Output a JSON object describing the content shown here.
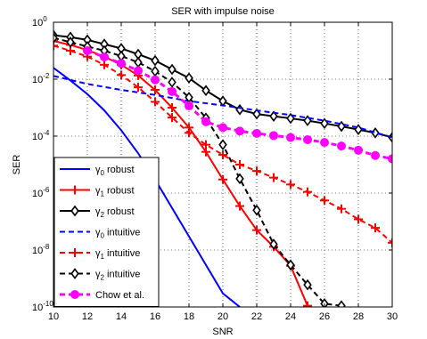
{
  "chart_data": {
    "type": "line",
    "title": "SER with impulse noise",
    "xlabel": "SNR",
    "ylabel": "SER",
    "xlim": [
      10,
      30
    ],
    "ylim": [
      1e-10,
      1
    ],
    "yscale": "log",
    "grid": true,
    "x_ticks": [
      "10",
      "12",
      "14",
      "16",
      "18",
      "20",
      "22",
      "24",
      "26",
      "28",
      "30"
    ],
    "y_ticks": [
      {
        "base": "10",
        "exp": "0",
        "value": 1
      },
      {
        "base": "10",
        "exp": "-2",
        "value": 0.01
      },
      {
        "base": "10",
        "exp": "-4",
        "value": 0.0001
      },
      {
        "base": "10",
        "exp": "-6",
        "value": 1e-06
      },
      {
        "base": "10",
        "exp": "-8",
        "value": 1e-08
      },
      {
        "base": "10",
        "exp": "-10",
        "value": 1e-10
      }
    ],
    "legend_position": "bottom-left",
    "series": [
      {
        "name": "γ0 robust",
        "sym": "γ",
        "sub": "0",
        "suffix": " robust",
        "color": "#0000ff",
        "dash": "solid",
        "marker": "none",
        "x": [
          10,
          11,
          12,
          13,
          14,
          15,
          16,
          17,
          18,
          19,
          20,
          21
        ],
        "y": [
          0.025,
          0.009,
          0.003,
          0.0008,
          0.00016,
          2.5e-05,
          3e-06,
          3e-07,
          3e-08,
          3e-09,
          3e-10,
          1e-10
        ]
      },
      {
        "name": "γ1 robust",
        "sym": "γ",
        "sub": "1",
        "suffix": " robust",
        "color": "#ff0000",
        "dash": "solid",
        "marker": "plus",
        "x": [
          10,
          11,
          12,
          13,
          14,
          15,
          16,
          17,
          18,
          19,
          20,
          21,
          22,
          23,
          24,
          25
        ],
        "y": [
          0.22,
          0.16,
          0.105,
          0.062,
          0.032,
          0.0135,
          0.0042,
          0.001,
          0.0002,
          2.8e-05,
          3e-06,
          3.5e-07,
          5e-08,
          1.3e-08,
          2.8e-09,
          1.1e-10
        ]
      },
      {
        "name": "γ2 robust",
        "sym": "γ",
        "sub": "2",
        "suffix": " robust",
        "color": "#000000",
        "dash": "solid",
        "marker": "diamond",
        "x": [
          10,
          11,
          12,
          13,
          14,
          15,
          16,
          17,
          18,
          19,
          20,
          21,
          22,
          23,
          24,
          25,
          26,
          27,
          28,
          29,
          30
        ],
        "y": [
          0.35,
          0.3,
          0.24,
          0.17,
          0.12,
          0.075,
          0.045,
          0.022,
          0.011,
          0.004,
          0.0017,
          0.00085,
          0.0006,
          0.0005,
          0.00042,
          0.00035,
          0.00028,
          0.00022,
          0.00017,
          0.00013,
          9e-05
        ]
      },
      {
        "name": "γ0 intuitive",
        "sym": "γ",
        "sub": "0",
        "suffix": " intuitive",
        "color": "#0000ff",
        "dash": "dashed",
        "marker": "none",
        "x": [
          10,
          12,
          14,
          16,
          18,
          20,
          22,
          24,
          26,
          28,
          30
        ],
        "y": [
          0.013,
          0.0068,
          0.0042,
          0.0028,
          0.0017,
          0.0012,
          0.0008,
          0.00055,
          0.00035,
          0.0002,
          9e-05
        ]
      },
      {
        "name": "γ1 intuitive",
        "sym": "γ",
        "sub": "1",
        "suffix": " intuitive",
        "color": "#ff0000",
        "dash": "dashed",
        "marker": "plus",
        "x": [
          10,
          11,
          12,
          13,
          14,
          15,
          16,
          17,
          18,
          19,
          20,
          21,
          22,
          23,
          24,
          25,
          26,
          27,
          28,
          29,
          30
        ],
        "y": [
          0.15,
          0.1,
          0.062,
          0.032,
          0.014,
          0.0052,
          0.0016,
          0.00045,
          0.00013,
          5e-05,
          2.2e-05,
          1e-05,
          6e-06,
          3.5e-06,
          2e-06,
          1.1e-06,
          5.5e-07,
          2.8e-07,
          1.2e-07,
          6e-08,
          1.8e-08
        ]
      },
      {
        "name": "γ2 intuitive",
        "sym": "γ",
        "sub": "2",
        "suffix": " intuitive",
        "color": "#000000",
        "dash": "dashed",
        "marker": "diamond",
        "x": [
          10,
          11,
          12,
          13,
          14,
          15,
          16,
          17,
          18,
          19,
          20,
          21,
          22,
          23,
          24,
          25,
          26,
          27
        ],
        "y": [
          0.28,
          0.2,
          0.14,
          0.1,
          0.065,
          0.039,
          0.019,
          0.0078,
          0.0023,
          0.00043,
          5e-05,
          3.2e-06,
          2.5e-07,
          1.6e-08,
          3e-09,
          6e-10,
          1.3e-10,
          1.1e-10
        ]
      },
      {
        "name": "Chow et al.",
        "sym": "",
        "sub": "",
        "suffix": "Chow et al.",
        "color": "#ff00ff",
        "dash": "dashed",
        "marker": "circle",
        "x": [
          12,
          13,
          14,
          15,
          16,
          17,
          18,
          19,
          20,
          21,
          22,
          23,
          24,
          25,
          26,
          27,
          28,
          29,
          30
        ],
        "y": [
          0.1,
          0.06,
          0.036,
          0.02,
          0.0095,
          0.0037,
          0.00115,
          0.00032,
          0.0002,
          0.00015,
          0.000125,
          0.000105,
          9e-05,
          7.5e-05,
          6e-05,
          4.5e-05,
          3.2e-05,
          2.1e-05,
          1.6e-05
        ]
      }
    ]
  }
}
